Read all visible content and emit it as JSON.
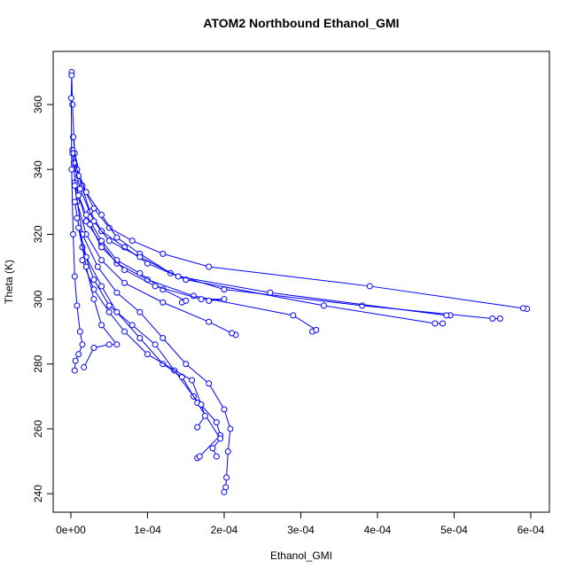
{
  "chart_data": {
    "type": "line",
    "title": "ATOM2 Northbound Ethanol_GMI",
    "x_label": "Ethanol_GMI",
    "y_label": "Theta (K)",
    "color": "#0000ff",
    "xlim": [
      -2.31e-05,
      0.0006243
    ],
    "ylim": [
      234.3,
      376.4
    ],
    "xticks": [
      {
        "value": 0,
        "label": "0e+00"
      },
      {
        "value": 0.0001,
        "label": "1e-04"
      },
      {
        "value": 0.0002,
        "label": "2e-04"
      },
      {
        "value": 0.0003,
        "label": "3e-04"
      },
      {
        "value": 0.0004,
        "label": "4e-04"
      },
      {
        "value": 0.0005,
        "label": "5e-04"
      },
      {
        "value": 0.0006,
        "label": "6e-04"
      }
    ],
    "yticks": [
      240,
      260,
      280,
      300,
      320,
      340,
      360
    ],
    "series": [
      {
        "x": [
          0.000595,
          0.00059,
          0.00039,
          0.00018,
          0.00012,
          8e-05,
          5e-05,
          3e-05,
          1.5e-05,
          5e-06,
          2e-06,
          1e-06
        ],
        "values": [
          297,
          297.2,
          304,
          310,
          314,
          318,
          322,
          328,
          335,
          345,
          360,
          370
        ]
      },
      {
        "x": [
          0.00056,
          0.00055,
          0.00038,
          0.0002,
          0.00013,
          9e-05,
          6e-05,
          4e-05,
          2e-05,
          8e-06,
          3e-06
        ],
        "values": [
          294,
          294,
          298,
          303,
          308,
          314,
          319,
          326,
          333,
          340,
          350
        ]
      },
      {
        "x": [
          0.000485,
          0.000475,
          0.00033,
          0.00015,
          0.0001,
          7e-05,
          4e-05,
          2.5e-05,
          1e-05,
          2e-06
        ],
        "values": [
          292.5,
          292.5,
          298,
          306,
          311,
          316,
          321,
          327,
          338,
          346
        ]
      },
      {
        "x": [
          0.000495,
          0.00049,
          0.00026,
          0.00014,
          9e-05,
          5e-05,
          3e-05,
          1.2e-05,
          4e-06
        ],
        "values": [
          295,
          295,
          302,
          307,
          313,
          318,
          324,
          334,
          342
        ]
      },
      {
        "x": [
          0.000315,
          0.00032,
          0.00029,
          0.00016,
          0.0001,
          6e-05,
          4e-05,
          2e-05,
          5e-06
        ],
        "values": [
          290,
          290.5,
          295,
          301,
          306,
          311,
          317,
          324,
          336
        ]
      },
      {
        "x": [
          0.000215,
          0.00021,
          0.00018,
          0.00012,
          7e-05,
          4e-05,
          2e-05,
          8e-06,
          2e-06
        ],
        "values": [
          289,
          289.5,
          293,
          299,
          305,
          312,
          320,
          330,
          345
        ]
      },
      {
        "x": [
          0.0002,
          0.000202,
          0.000203,
          0.000205,
          0.000208,
          0.0002,
          0.00018,
          0.00015,
          0.00012,
          9e-05,
          6e-05,
          3.5e-05,
          1.5e-05,
          5e-06
        ],
        "values": [
          240.5,
          242,
          245,
          253,
          260,
          266,
          274,
          280,
          288,
          296,
          302,
          310,
          320,
          335
        ]
      },
      {
        "x": [
          0.000165,
          0.000168,
          0.000195,
          0.00019,
          0.00016,
          0.000135,
          0.00011,
          8e-05,
          5e-05,
          3e-05,
          1.5e-05,
          5e-06
        ],
        "values": [
          251,
          251.5,
          258,
          262,
          270,
          278,
          286,
          292,
          298,
          306,
          316,
          330
        ]
      },
      {
        "x": [
          0.00019,
          0.000185,
          0.000195,
          0.000165,
          0.000145,
          0.00012,
          9e-05,
          6e-05,
          4e-05,
          2e-05,
          8e-06
        ],
        "values": [
          251.5,
          254,
          257,
          268,
          276,
          280,
          288,
          296,
          304,
          313,
          325
        ]
      },
      {
        "x": [
          0.000165,
          0.000175,
          0.00017,
          0.000158,
          0.0001,
          7e-05,
          5e-05,
          3e-05,
          1.5e-05
        ],
        "values": [
          260.5,
          264,
          267.5,
          275,
          283,
          290,
          296,
          303,
          312
        ]
      },
      {
        "x": [
          5e-06,
          6e-06,
          1e-05,
          1.5e-05,
          1.2e-05,
          8e-06,
          5e-06,
          3e-06,
          1e-06,
          5e-07,
          1e-06
        ],
        "values": [
          278,
          281,
          283,
          286,
          290,
          298,
          307,
          320,
          340,
          362,
          369
        ]
      },
      {
        "x": [
          0.000145,
          0.00015,
          0.00012,
          9e-05,
          6e-05,
          4e-05,
          2e-05,
          1e-05
        ],
        "values": [
          299,
          299.5,
          303,
          308,
          312,
          318,
          326,
          332
        ]
      },
      {
        "x": [
          1.7e-05,
          3e-05,
          5e-05,
          6e-05,
          4e-05,
          3e-05,
          2e-05,
          1e-05
        ],
        "values": [
          279,
          285,
          286,
          286,
          292,
          300,
          310,
          322
        ]
      },
      {
        "x": [
          0.00018,
          0.0002,
          0.00017,
          0.00011,
          7e-05,
          4e-05,
          2.5e-05
        ],
        "values": [
          299.5,
          300,
          300,
          304,
          309,
          316,
          323
        ]
      }
    ]
  }
}
